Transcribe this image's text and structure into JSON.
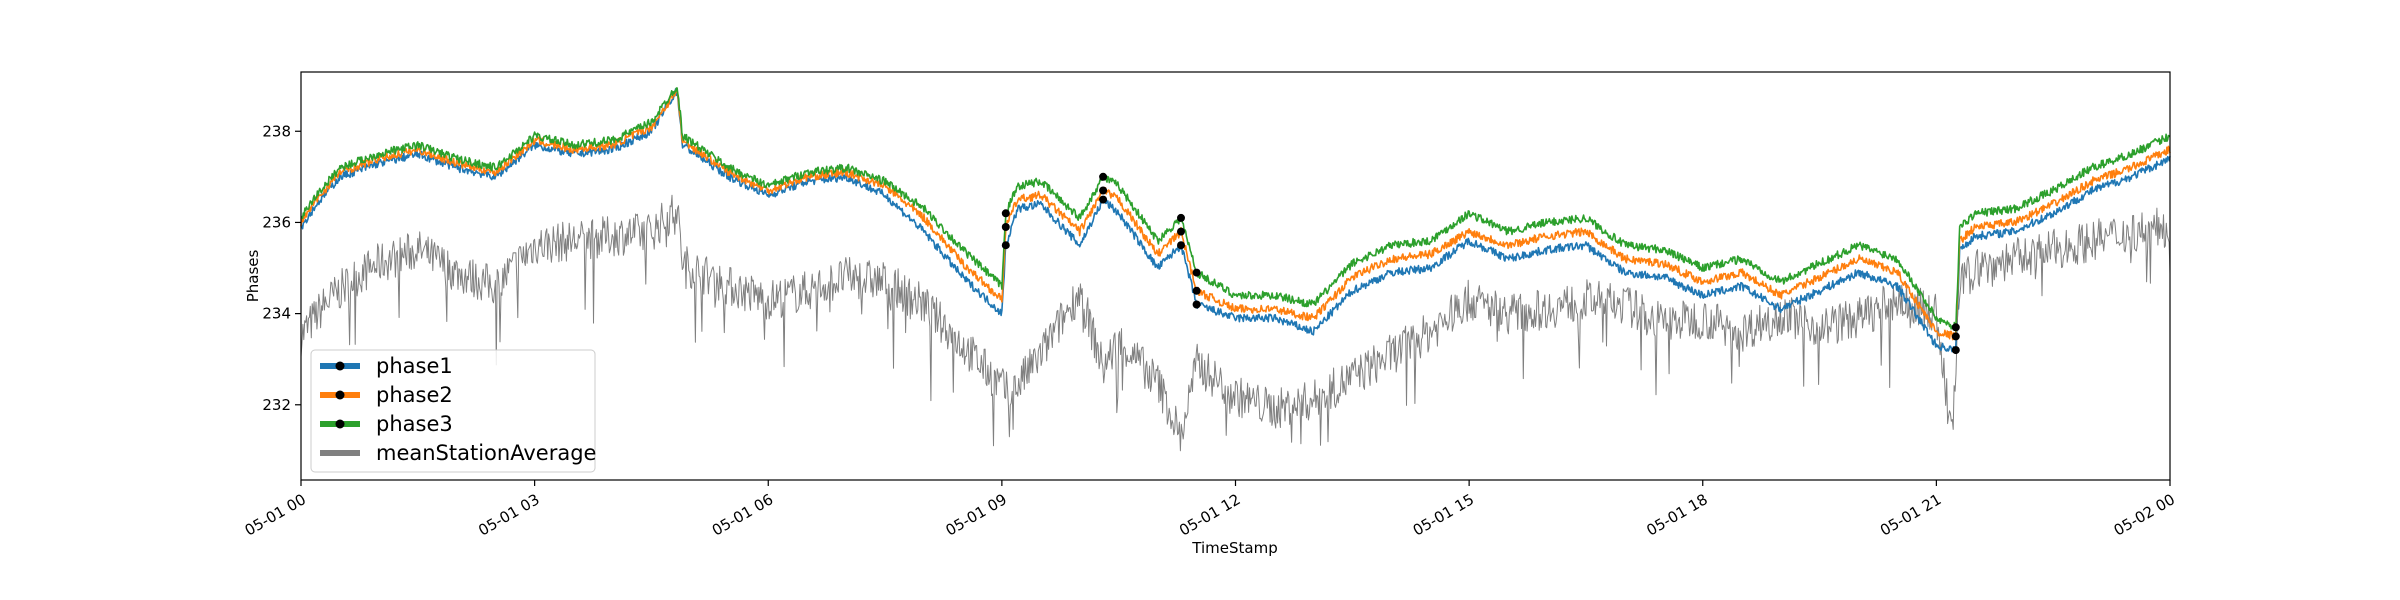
{
  "chart_data": {
    "type": "line",
    "title": "",
    "xlabel": "TimeStamp",
    "ylabel": "Phases",
    "x_range": [
      "05-01 00",
      "05-02 00"
    ],
    "x_ticks": [
      "05-01 00",
      "05-01 03",
      "05-01 06",
      "05-01 09",
      "05-01 12",
      "05-01 15",
      "05-01 18",
      "05-01 21",
      "05-02 00"
    ],
    "y_ticks": [
      "232",
      "234",
      "236",
      "238"
    ],
    "ylim": [
      230.35,
      239.3
    ],
    "grid": false,
    "legend_position": "lower-left",
    "series": [
      {
        "name": "phase1",
        "color": "#1f77b4",
        "x_hours": [
          0,
          0.2,
          0.5,
          1,
          1.5,
          2,
          2.5,
          3,
          3.5,
          4,
          4.5,
          4.83,
          4.9,
          5.5,
          6,
          6.5,
          7,
          7.5,
          8,
          8.5,
          9,
          9.05,
          9.2,
          9.5,
          10,
          10.3,
          10.5,
          11,
          11.3,
          11.5,
          12,
          12.5,
          13,
          13.5,
          14,
          14.5,
          15,
          15.5,
          16,
          16.5,
          17,
          17.5,
          18,
          18.5,
          19,
          19.5,
          20,
          20.5,
          21,
          21.25,
          21.3,
          21.5,
          22,
          22.5,
          23,
          23.5,
          24
        ],
        "y": [
          235.9,
          236.4,
          237.0,
          237.3,
          237.5,
          237.2,
          237.0,
          237.7,
          237.5,
          237.6,
          238.0,
          238.9,
          237.7,
          237.0,
          236.6,
          236.9,
          237.0,
          236.6,
          235.8,
          234.8,
          234.0,
          235.5,
          236.3,
          236.4,
          235.5,
          236.5,
          236.2,
          235.0,
          235.5,
          234.2,
          233.9,
          233.9,
          233.6,
          234.5,
          234.9,
          235.0,
          235.6,
          235.2,
          235.4,
          235.5,
          234.9,
          234.8,
          234.4,
          234.6,
          234.1,
          234.5,
          234.9,
          234.6,
          233.3,
          233.2,
          235.4,
          235.7,
          235.8,
          236.2,
          236.7,
          237.0,
          237.4
        ]
      },
      {
        "name": "phase2",
        "color": "#ff7f0e",
        "x_hours": [
          0,
          0.2,
          0.5,
          1,
          1.5,
          2,
          2.5,
          3,
          3.5,
          4,
          4.5,
          4.83,
          4.9,
          5.5,
          6,
          6.5,
          7,
          7.5,
          8,
          8.5,
          9,
          9.05,
          9.2,
          9.5,
          10,
          10.3,
          10.5,
          11,
          11.3,
          11.5,
          12,
          12.5,
          13,
          13.5,
          14,
          14.5,
          15,
          15.5,
          16,
          16.5,
          17,
          17.5,
          18,
          18.5,
          19,
          19.5,
          20,
          20.5,
          21,
          21.25,
          21.3,
          21.5,
          22,
          22.5,
          23,
          23.5,
          24
        ],
        "y": [
          236.0,
          236.5,
          237.1,
          237.4,
          237.6,
          237.3,
          237.1,
          237.8,
          237.6,
          237.7,
          238.1,
          238.9,
          237.8,
          237.1,
          236.7,
          237.0,
          237.1,
          236.8,
          236.1,
          235.1,
          234.3,
          235.9,
          236.5,
          236.6,
          235.8,
          236.7,
          236.5,
          235.3,
          235.8,
          234.5,
          234.1,
          234.1,
          233.9,
          234.8,
          235.2,
          235.3,
          235.8,
          235.5,
          235.7,
          235.8,
          235.2,
          235.1,
          234.7,
          234.9,
          234.4,
          234.8,
          235.2,
          234.9,
          233.6,
          233.5,
          235.6,
          235.9,
          236.0,
          236.4,
          236.9,
          237.2,
          237.6
        ]
      },
      {
        "name": "phase3",
        "color": "#2ca02c",
        "x_hours": [
          0,
          0.2,
          0.5,
          1,
          1.5,
          2,
          2.5,
          3,
          3.5,
          4,
          4.5,
          4.83,
          4.9,
          5.5,
          6,
          6.5,
          7,
          7.5,
          8,
          8.5,
          9,
          9.05,
          9.2,
          9.5,
          10,
          10.3,
          10.5,
          11,
          11.3,
          11.5,
          12,
          12.5,
          13,
          13.5,
          14,
          14.5,
          15,
          15.5,
          16,
          16.5,
          17,
          17.5,
          18,
          18.5,
          19,
          19.5,
          20,
          20.5,
          21,
          21.25,
          21.3,
          21.5,
          22,
          22.5,
          23,
          23.5,
          24
        ],
        "y": [
          236.1,
          236.6,
          237.2,
          237.5,
          237.7,
          237.4,
          237.2,
          237.9,
          237.7,
          237.8,
          238.2,
          239.0,
          237.9,
          237.2,
          236.8,
          237.1,
          237.2,
          236.9,
          236.3,
          235.4,
          234.6,
          236.2,
          236.8,
          236.9,
          236.1,
          237.0,
          236.8,
          235.6,
          236.1,
          234.9,
          234.4,
          234.4,
          234.2,
          235.1,
          235.5,
          235.6,
          236.2,
          235.8,
          236.0,
          236.1,
          235.5,
          235.4,
          235.0,
          235.2,
          234.7,
          235.1,
          235.5,
          235.2,
          233.9,
          233.7,
          235.9,
          236.2,
          236.3,
          236.7,
          237.2,
          237.5,
          237.9
        ]
      },
      {
        "name": "meanStationAverage",
        "color": "#808080",
        "x_hours": [
          0,
          0.3,
          0.7,
          1,
          1.5,
          2,
          2.5,
          3,
          3.5,
          4,
          4.5,
          4.83,
          4.9,
          5.5,
          6,
          6.5,
          7,
          7.5,
          8,
          8.5,
          9,
          9.1,
          9.5,
          10,
          10.3,
          10.5,
          11,
          11.3,
          11.5,
          12,
          12.5,
          13,
          13.5,
          14,
          14.5,
          15,
          15.5,
          16,
          16.5,
          17,
          17.5,
          18,
          18.5,
          19,
          19.5,
          20,
          20.5,
          21,
          21.2,
          21.3,
          21.5,
          22,
          22.5,
          23,
          23.5,
          24
        ],
        "y": [
          233.5,
          234.2,
          234.8,
          235.1,
          235.4,
          234.9,
          234.6,
          235.5,
          235.6,
          235.7,
          235.8,
          236.3,
          235.1,
          234.6,
          234.3,
          234.5,
          234.8,
          234.7,
          234.2,
          233.3,
          232.4,
          232.2,
          233.1,
          234.5,
          232.8,
          233.4,
          232.5,
          231.3,
          232.9,
          232.2,
          231.9,
          232.1,
          232.6,
          233.1,
          233.6,
          234.3,
          234.0,
          234.1,
          234.3,
          234.2,
          233.8,
          233.9,
          233.6,
          234.0,
          233.7,
          233.9,
          234.3,
          234.0,
          231.2,
          234.6,
          235.0,
          235.2,
          235.4,
          235.6,
          235.8,
          235.9
        ]
      }
    ]
  }
}
